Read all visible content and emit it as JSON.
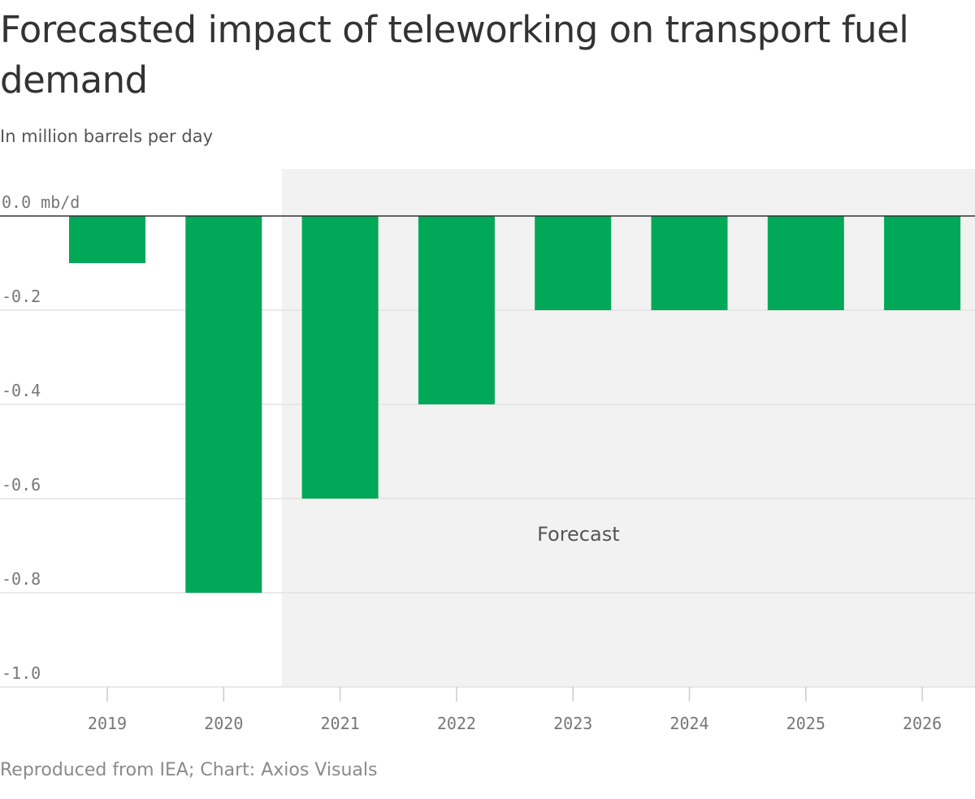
{
  "title": "Forecasted impact of teleworking on transport fuel demand",
  "subtitle": "In million barrels per day",
  "source": "Reproduced from IEA; Chart: Axios Visuals",
  "colors": {
    "bar": "#00a857",
    "forecast_band": "#f2f2f2",
    "gridline": "#e2e2e2",
    "zero_line": "#333333"
  },
  "chart_data": {
    "type": "bar",
    "categories": [
      "2019",
      "2020",
      "2021",
      "2022",
      "2023",
      "2024",
      "2025",
      "2026"
    ],
    "values": [
      -0.1,
      -0.8,
      -0.6,
      -0.4,
      -0.2,
      -0.2,
      -0.2,
      -0.2
    ],
    "ylim": [
      -1.0,
      0.0
    ],
    "yticks": [
      0.0,
      -0.2,
      -0.4,
      -0.6,
      -0.8,
      -1.0
    ],
    "ytick_labels": [
      "0.0 mb/d",
      "-0.2",
      "-0.4",
      "-0.6",
      "-0.8",
      "-1.0"
    ],
    "grid": true,
    "forecast_start": "2021",
    "forecast_end": "2026",
    "annotations": [
      {
        "text": "Forecast",
        "x": "2023-2024",
        "y": -0.69
      }
    ]
  }
}
